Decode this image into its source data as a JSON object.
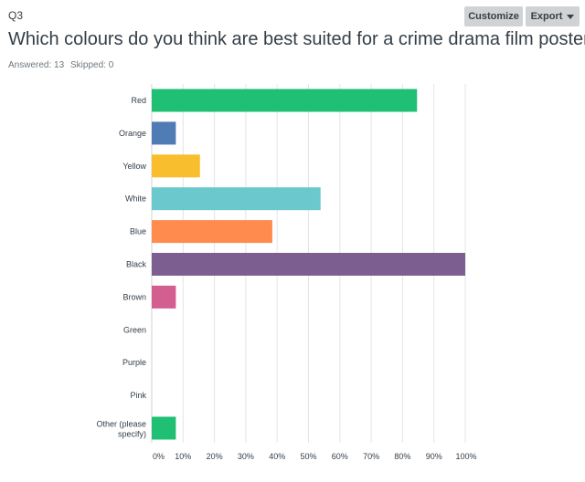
{
  "question": {
    "number": "Q3",
    "title": "Which colours do you think are best suited for a crime drama film poster?",
    "answered": "Answered: 13",
    "skipped": "Skipped: 0"
  },
  "toolbar": {
    "customize_label": "Customize",
    "export_label": "Export"
  },
  "chart_data": {
    "type": "bar",
    "orientation": "horizontal",
    "categories": [
      "Red",
      "Orange",
      "Yellow",
      "White",
      "Blue",
      "Black",
      "Brown",
      "Green",
      "Purple",
      "Pink",
      "Other (please specify)"
    ],
    "values": [
      84.62,
      7.69,
      15.38,
      53.85,
      38.46,
      100,
      7.69,
      0,
      0,
      0,
      7.69
    ],
    "colors": [
      "#1fbf74",
      "#507cb6",
      "#f9be2e",
      "#6bc8cd",
      "#ff8b4f",
      "#7d5e90",
      "#d25f90",
      "#1fbf74",
      "#507cb6",
      "#f9be2e",
      "#1fbf74"
    ],
    "xlim": [
      0,
      100
    ],
    "xticks": [
      "0%",
      "10%",
      "20%",
      "30%",
      "40%",
      "50%",
      "60%",
      "70%",
      "80%",
      "90%",
      "100%"
    ],
    "grid": true
  }
}
